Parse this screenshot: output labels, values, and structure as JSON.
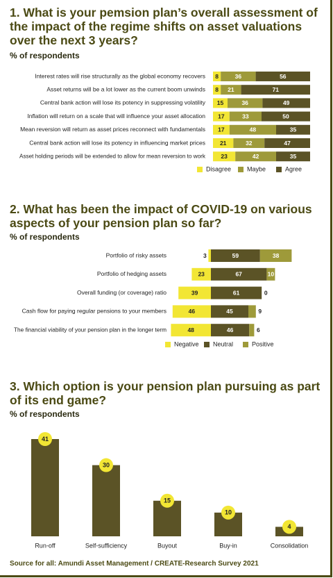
{
  "chart_data": [
    {
      "type": "stackedbar",
      "title": "1. What is your pemsion plan’s overall assessment of the impact of the regime shifts on asset valuations over the next 3 years?",
      "subtitle": "% of respondents",
      "categories": [
        "Interest rates will rise structurally as the global economy recovers",
        "Asset returns will be a lot lower as the current boom unwinds",
        "Central bank action will lose its potency in suppressing volatility",
        "Inflation will return on a scale that will influence your asset allocation",
        "Mean reversion will return as asset prices reconnect with fundamentals",
        "Central bank action will lose its potency in influencing market prices",
        "Asset holding periods will be extended to allow for mean reversion to work"
      ],
      "series": [
        {
          "name": "Disagree",
          "color": "#f2e634",
          "values": [
            8,
            8,
            15,
            17,
            17,
            21,
            23
          ]
        },
        {
          "name": "Maybe",
          "color": "#9e9a3a",
          "values": [
            36,
            21,
            36,
            33,
            48,
            32,
            42
          ]
        },
        {
          "name": "Agree",
          "color": "#5b5326",
          "values": [
            56,
            71,
            49,
            50,
            35,
            47,
            35
          ]
        }
      ]
    },
    {
      "type": "divergingbar",
      "title": "2. What has been the impact of COVID-19 on various aspects of your pension plan so far?",
      "subtitle": "% of respondents",
      "categories": [
        "Portfolio of risky assets",
        "Portfolio of hedging assets",
        "Overall funding (or coverage) ratio",
        "Cash flow for paying regular pensions to your members",
        "The financial viability of your pension plan in the longer term"
      ],
      "series": [
        {
          "name": "Negative",
          "color": "#f2e634",
          "values": [
            3,
            23,
            39,
            46,
            48
          ]
        },
        {
          "name": "Neutral",
          "color": "#5b5326",
          "values": [
            59,
            67,
            61,
            45,
            46
          ]
        },
        {
          "name": "Positive",
          "color": "#9e9a3a",
          "values": [
            38,
            10,
            0,
            9,
            6
          ]
        }
      ]
    },
    {
      "type": "bar",
      "title": "3. Which option is your pension plan pursuing as part of its end game?",
      "subtitle": "% of respondents",
      "categories": [
        "Run-off",
        "Self-sufficiency",
        "Buyout",
        "Buy-in",
        "Consolidation"
      ],
      "values": [
        41,
        30,
        15,
        10,
        4
      ],
      "color": "#5b5326",
      "label_color": "#f2e634"
    }
  ],
  "source": "Source for all: Amundi Asset Management / CREATE-Research Survey 2021"
}
